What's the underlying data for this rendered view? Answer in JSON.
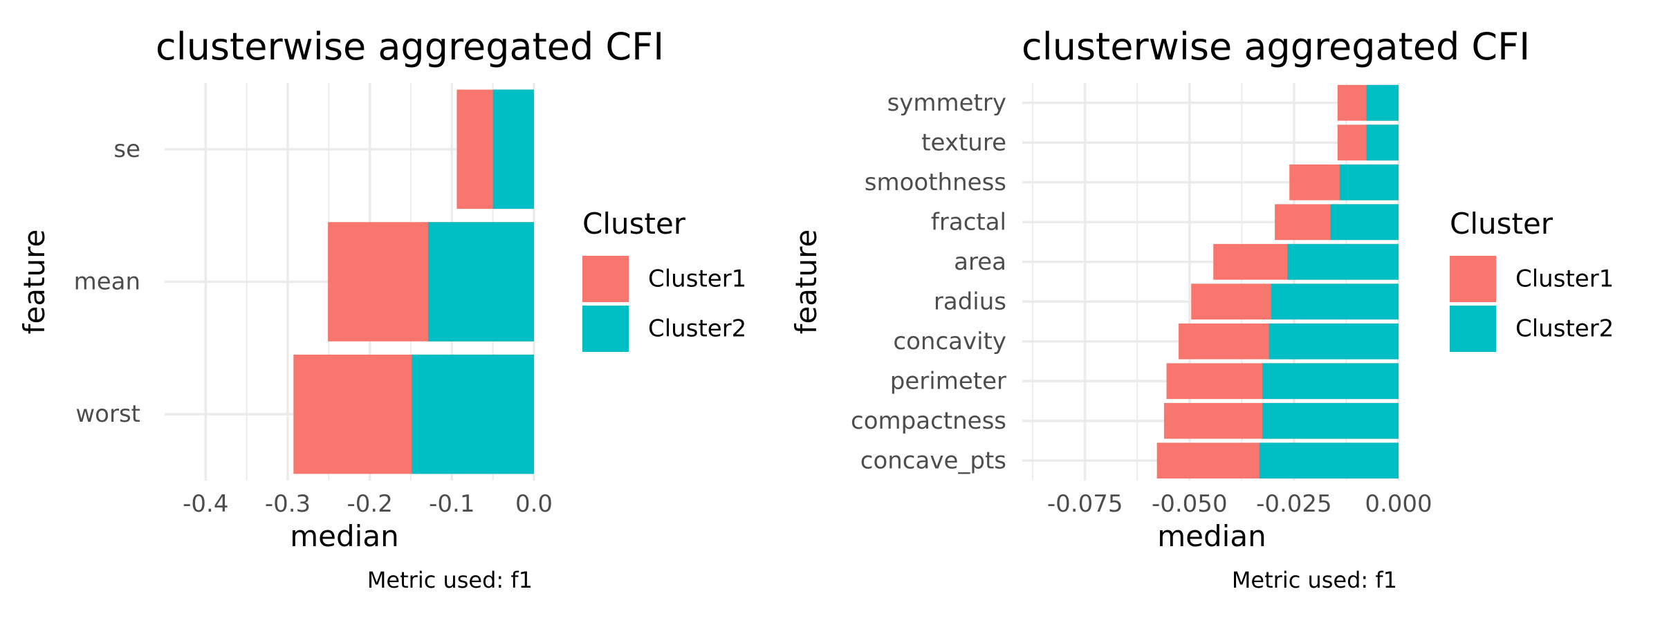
{
  "colors": {
    "Cluster1": "#F8766D",
    "Cluster2": "#00BFC4"
  },
  "chart_data": [
    {
      "type": "bar",
      "orientation": "horizontal",
      "stacked": true,
      "title": "clusterwise aggregated CFI",
      "xlabel": "median",
      "ylabel": "feature",
      "caption": "Metric used: f1",
      "categories": [
        "se",
        "mean",
        "worst"
      ],
      "series": [
        {
          "name": "Cluster1",
          "values": [
            -0.094,
            -0.251,
            -0.293
          ]
        },
        {
          "name": "Cluster2",
          "values": [
            -0.05,
            -0.129,
            -0.149
          ]
        }
      ],
      "xlim": [
        -0.45,
        0.0
      ],
      "xticks": [
        -0.4,
        -0.3,
        -0.2,
        -0.1,
        0.0
      ],
      "xtick_labels": [
        "-0.4",
        "-0.3",
        "-0.2",
        "-0.1",
        "0.0"
      ],
      "grid": true,
      "legend": {
        "title": "Cluster",
        "position": "right",
        "entries": [
          "Cluster1",
          "Cluster2"
        ]
      }
    },
    {
      "type": "bar",
      "orientation": "horizontal",
      "stacked": true,
      "title": "clusterwise aggregated CFI",
      "xlabel": "median",
      "ylabel": "feature",
      "caption": "Metric used: f1",
      "categories": [
        "symmetry",
        "texture",
        "smoothness",
        "fractal",
        "area",
        "radius",
        "concavity",
        "perimeter",
        "compactness",
        "concave_pts"
      ],
      "series": [
        {
          "name": "Cluster1",
          "values": [
            -0.0146,
            -0.0146,
            -0.0261,
            -0.0296,
            -0.0443,
            -0.0496,
            -0.0526,
            -0.0555,
            -0.0561,
            -0.0578
          ]
        },
        {
          "name": "Cluster2",
          "values": [
            -0.0077,
            -0.0077,
            -0.0141,
            -0.0163,
            -0.0266,
            -0.0305,
            -0.031,
            -0.0326,
            -0.0326,
            -0.0333
          ]
        }
      ],
      "xlim": [
        -0.09,
        0.0
      ],
      "xticks": [
        -0.075,
        -0.05,
        -0.025,
        0.0
      ],
      "xtick_labels": [
        "-0.075",
        "-0.050",
        "-0.025",
        "0.000"
      ],
      "grid": true,
      "legend": {
        "title": "Cluster",
        "position": "right",
        "entries": [
          "Cluster1",
          "Cluster2"
        ]
      }
    }
  ]
}
